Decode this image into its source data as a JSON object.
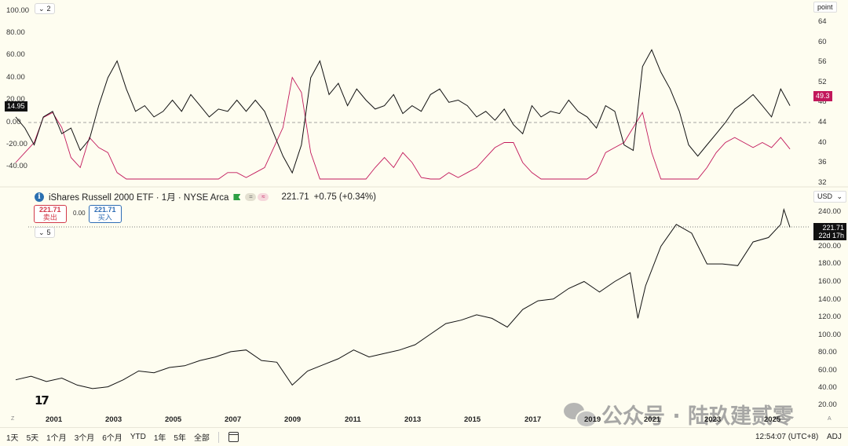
{
  "top_panel": {
    "collapse_label": "2",
    "unit_label": "point",
    "left_axis_ticks": [
      "100.00",
      "80.00",
      "60.00",
      "40.00",
      "20.00",
      "0.00",
      "-20.00",
      "-40.00"
    ],
    "right_axis_ticks": [
      "64",
      "60",
      "56",
      "52",
      "48",
      "44",
      "40",
      "36",
      "32"
    ],
    "left_value_tag": "14.95",
    "right_value_tag": "49.3",
    "left_tag_color": "#111111",
    "right_tag_color": "#c2185b"
  },
  "legend": {
    "symbol_info": "iShares Russell 2000 ETF · 1月 · NYSE Arca",
    "price": "221.71",
    "change": "+0.75 (+0.34%)",
    "sell_price": "221.71",
    "sell_label": "卖出",
    "spread": "0.00",
    "buy_price": "221.71",
    "buy_label": "买入",
    "collapse_label": "5"
  },
  "bottom_panel": {
    "currency": "USD",
    "price_axis_ticks": [
      "240.00",
      "220.00",
      "200.00",
      "180.00",
      "160.00",
      "140.00",
      "120.00",
      "100.00",
      "80.00",
      "60.00",
      "40.00",
      "20.00"
    ],
    "last_price_tag": "221.71",
    "countdown_tag": "22d 17h"
  },
  "x_axis_labels": [
    "2001",
    "2003",
    "2005",
    "2007",
    "2009",
    "2011",
    "2013",
    "2015",
    "2017",
    "2019",
    "2021",
    "2023",
    "2025"
  ],
  "watermark": "公众号 · 陆玖建贰零",
  "bottom_bar": {
    "timeframes": [
      "1天",
      "5天",
      "1个月",
      "3个月",
      "6个月",
      "YTD",
      "1年",
      "5年",
      "全部"
    ],
    "time": "12:54:07 (UTC+8)",
    "adj": "ADJ"
  },
  "chart_data": [
    {
      "type": "line",
      "title": "",
      "x_range": [
        2000.0,
        2025.3
      ],
      "left_ylim": [
        -50,
        110
      ],
      "right_ylim": [
        30,
        66
      ],
      "series": [
        {
          "axis": "right",
          "color": "#c2185b",
          "x": [
            2000.0,
            2000.3,
            2000.6,
            2000.9,
            2001.2,
            2001.5,
            2001.8,
            2002.1,
            2002.4,
            2002.7,
            2003.0,
            2003.3,
            2003.6,
            2003.9,
            2004.2,
            2004.5,
            2004.8,
            2005.1,
            2005.4,
            2005.7,
            2006.0,
            2006.3,
            2006.6,
            2006.9,
            2007.2,
            2007.5,
            2007.8,
            2008.1,
            2008.4,
            2008.7,
            2009.0,
            2009.3,
            2009.6,
            2009.9,
            2010.2,
            2010.5,
            2010.8,
            2011.1,
            2011.4,
            2011.7,
            2012.0,
            2012.3,
            2012.6,
            2012.9,
            2013.2,
            2013.5,
            2013.8,
            2014.1,
            2014.4,
            2014.7,
            2015.0,
            2015.3,
            2015.6,
            2015.9,
            2016.2,
            2016.5,
            2016.8,
            2017.1,
            2017.4,
            2017.7,
            2018.0,
            2018.3,
            2018.6,
            2018.9,
            2019.2,
            2019.5,
            2019.8,
            2020.1,
            2020.4,
            2020.7,
            2021.0,
            2021.3,
            2021.6,
            2021.9,
            2022.2,
            2022.5,
            2022.8,
            2023.1,
            2023.4,
            2023.7,
            2024.0,
            2024.3,
            2024.6,
            2024.9,
            2025.2
          ],
          "y": [
            52,
            50,
            48,
            43,
            42,
            45,
            51,
            53,
            47,
            49,
            50,
            54,
            59,
            61,
            62,
            59,
            60,
            57,
            58,
            56,
            56,
            57,
            56,
            54,
            54,
            55,
            54,
            53,
            49,
            45,
            35,
            38,
            50,
            59,
            60,
            58,
            59,
            59,
            57,
            53,
            51,
            53,
            50,
            52,
            55,
            56,
            57,
            54,
            55,
            54,
            53,
            51,
            49,
            48,
            48,
            52,
            54,
            58,
            58,
            59,
            60,
            59,
            58,
            54,
            50,
            49,
            48,
            45,
            42,
            50,
            56,
            62,
            60,
            58,
            56,
            53,
            50,
            48,
            47,
            48,
            49,
            48,
            49,
            47,
            49.3
          ]
        },
        {
          "axis": "left",
          "color": "#111111",
          "x": [
            2000.0,
            2000.3,
            2000.6,
            2000.9,
            2001.2,
            2001.5,
            2001.8,
            2002.1,
            2002.4,
            2002.7,
            2003.0,
            2003.3,
            2003.6,
            2003.9,
            2004.2,
            2004.5,
            2004.8,
            2005.1,
            2005.4,
            2005.7,
            2006.0,
            2006.3,
            2006.6,
            2006.9,
            2007.2,
            2007.5,
            2007.8,
            2008.1,
            2008.4,
            2008.7,
            2009.0,
            2009.3,
            2009.6,
            2009.9,
            2010.2,
            2010.5,
            2010.8,
            2011.1,
            2011.4,
            2011.7,
            2012.0,
            2012.3,
            2012.6,
            2012.9,
            2013.2,
            2013.5,
            2013.8,
            2014.1,
            2014.4,
            2014.7,
            2015.0,
            2015.3,
            2015.6,
            2015.9,
            2016.2,
            2016.5,
            2016.8,
            2017.1,
            2017.4,
            2017.7,
            2018.0,
            2018.3,
            2018.6,
            2018.9,
            2019.2,
            2019.5,
            2019.8,
            2020.1,
            2020.4,
            2020.7,
            2021.0,
            2021.3,
            2021.6,
            2021.9,
            2022.2,
            2022.5,
            2022.8,
            2023.1,
            2023.4,
            2023.7,
            2024.0,
            2024.3,
            2024.6,
            2024.9,
            2025.2
          ],
          "y": [
            5,
            -5,
            -20,
            5,
            10,
            -10,
            -5,
            -25,
            -15,
            15,
            40,
            55,
            30,
            10,
            15,
            5,
            10,
            20,
            10,
            25,
            15,
            5,
            12,
            10,
            20,
            10,
            20,
            10,
            -10,
            -30,
            -45,
            -20,
            40,
            55,
            25,
            35,
            15,
            30,
            20,
            12,
            15,
            25,
            8,
            15,
            10,
            25,
            30,
            18,
            20,
            15,
            5,
            10,
            2,
            12,
            -2,
            -10,
            15,
            5,
            10,
            8,
            20,
            10,
            5,
            -5,
            15,
            10,
            -20,
            -25,
            50,
            65,
            45,
            30,
            10,
            -20,
            -30,
            -20,
            -10,
            0,
            12,
            18,
            25,
            15,
            5,
            30,
            15
          ]
        }
      ]
    },
    {
      "type": "line",
      "title": "iShares Russell 2000 ETF · 1月 · NYSE Arca",
      "x_range": [
        2000.0,
        2025.3
      ],
      "ylim": [
        12,
        252
      ],
      "series": [
        {
          "color": "#111111",
          "x": [
            2000.0,
            2000.5,
            2001.0,
            2001.5,
            2002.0,
            2002.5,
            2003.0,
            2003.5,
            2004.0,
            2004.5,
            2005.0,
            2005.5,
            2006.0,
            2006.5,
            2007.0,
            2007.5,
            2008.0,
            2008.5,
            2009.0,
            2009.5,
            2010.0,
            2010.5,
            2011.0,
            2011.5,
            2012.0,
            2012.5,
            2013.0,
            2013.5,
            2014.0,
            2014.5,
            2015.0,
            2015.5,
            2016.0,
            2016.5,
            2017.0,
            2017.5,
            2018.0,
            2018.5,
            2019.0,
            2019.5,
            2020.0,
            2020.25,
            2020.5,
            2021.0,
            2021.5,
            2022.0,
            2022.5,
            2023.0,
            2023.5,
            2024.0,
            2024.5,
            2024.9,
            2025.0,
            2025.2
          ],
          "y": [
            48,
            52,
            46,
            50,
            42,
            38,
            40,
            48,
            58,
            56,
            62,
            64,
            70,
            74,
            80,
            82,
            70,
            68,
            42,
            58,
            65,
            72,
            82,
            74,
            78,
            82,
            88,
            100,
            112,
            116,
            122,
            118,
            108,
            128,
            138,
            140,
            152,
            160,
            148,
            160,
            170,
            118,
            155,
            200,
            225,
            215,
            180,
            180,
            178,
            205,
            210,
            225,
            242,
            221.71
          ]
        }
      ]
    }
  ]
}
